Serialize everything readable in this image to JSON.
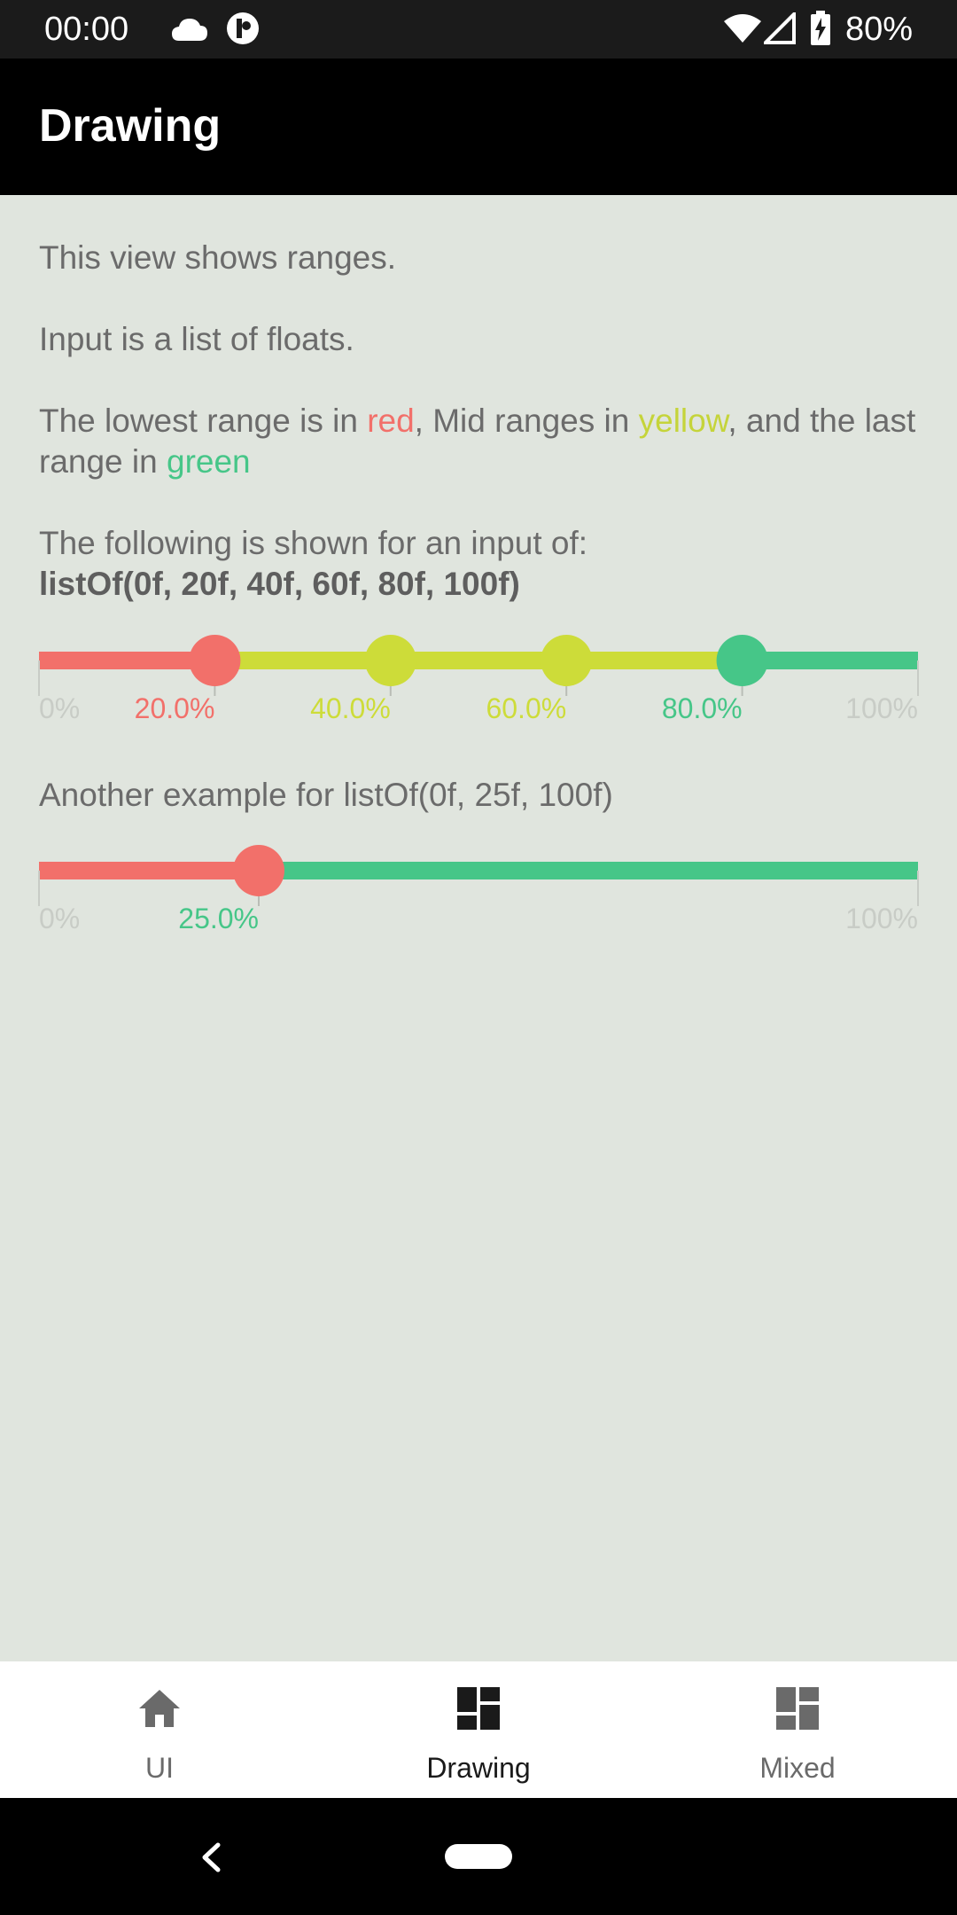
{
  "status_bar": {
    "time": "00:00",
    "battery": "80%",
    "icons": [
      "cloud-icon",
      "app-notification-icon",
      "wifi-icon",
      "signal-icon",
      "battery-icon"
    ]
  },
  "app_bar": {
    "title": "Drawing"
  },
  "content": {
    "p1": "This view shows ranges.",
    "p2": "Input is a list of floats.",
    "p3": {
      "prefix": "The lowest range is in ",
      "red": "red",
      "mid1": ", Mid ranges in ",
      "yellow": "yellow",
      "mid2": ", and the last range in ",
      "green": "green"
    },
    "p4": {
      "line1": "The following is shown for an input of:",
      "line2": "listOf(0f, 20f, 40f, 60f, 80f, 100f)"
    },
    "p5": "Another example for listOf(0f, 25f, 100f)"
  },
  "colors": {
    "red": "#f2706a",
    "yellow": "#cddc39",
    "green": "#46c688",
    "end_label": "#c8ccc6"
  },
  "chart_data": [
    {
      "type": "range-bar",
      "input": [
        0,
        20,
        40,
        60,
        80,
        100
      ],
      "thumbs": [
        20,
        40,
        60,
        80
      ],
      "labels": [
        {
          "value": 0,
          "text": "0%",
          "color": "end"
        },
        {
          "value": 20,
          "text": "20.0%",
          "color": "red"
        },
        {
          "value": 40,
          "text": "40.0%",
          "color": "yellow"
        },
        {
          "value": 60,
          "text": "60.0%",
          "color": "yellow"
        },
        {
          "value": 80,
          "text": "80.0%",
          "color": "green"
        },
        {
          "value": 100,
          "text": "100%",
          "color": "end"
        }
      ]
    },
    {
      "type": "range-bar",
      "input": [
        0,
        25,
        100
      ],
      "thumbs": [
        25
      ],
      "labels": [
        {
          "value": 0,
          "text": "0%",
          "color": "end"
        },
        {
          "value": 25,
          "text": "25.0%",
          "color": "green"
        },
        {
          "value": 100,
          "text": "100%",
          "color": "end"
        }
      ]
    }
  ],
  "bottom_nav": {
    "items": [
      {
        "label": "UI",
        "icon": "home-icon",
        "active": false
      },
      {
        "label": "Drawing",
        "icon": "dashboard-icon",
        "active": true
      },
      {
        "label": "Mixed",
        "icon": "dashboard-icon",
        "active": false
      }
    ]
  },
  "nav_bar": {
    "icons": [
      "back-icon",
      "home-pill-icon"
    ]
  }
}
